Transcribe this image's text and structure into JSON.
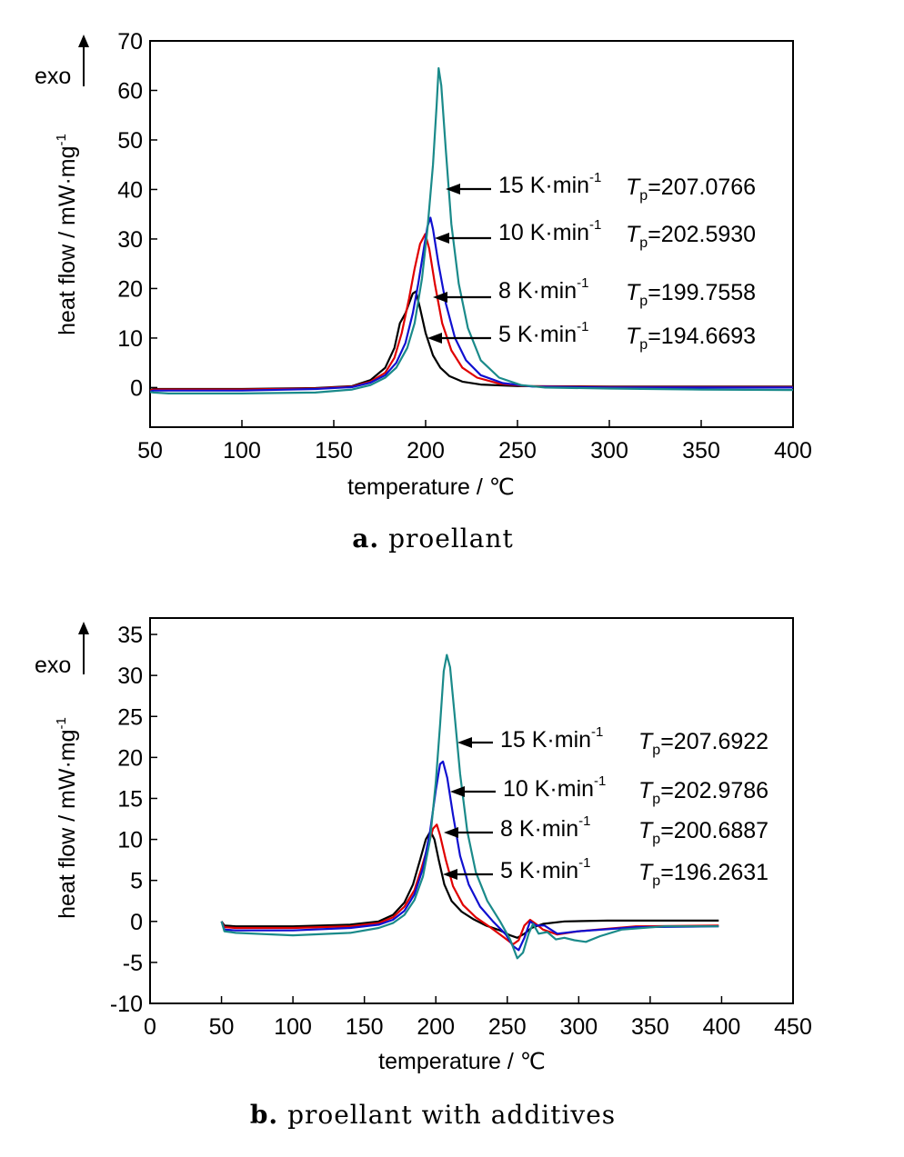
{
  "chart_data": [
    {
      "type": "line",
      "panel_label": "a.",
      "caption": "proellant",
      "xlabel": "temperature / ℃",
      "ylabel": "heat flow / mW·mg",
      "ylabel_sup": "-1",
      "exo_label": "exo",
      "xlim": [
        50,
        400
      ],
      "ylim": [
        -8,
        70
      ],
      "xticks": [
        50,
        100,
        150,
        200,
        250,
        300,
        350,
        400
      ],
      "yticks": [
        0,
        10,
        20,
        30,
        40,
        50,
        60,
        70
      ],
      "legend_placement": "inline arrows pointing to curves",
      "series": [
        {
          "name": "5 K·min",
          "name_sup": "-1",
          "tp_label": "T",
          "tp_sub": "p",
          "tp_value": "=194.6693",
          "color": "#000000",
          "x": [
            50,
            52,
            60,
            100,
            140,
            160,
            170,
            178,
            183,
            186,
            189,
            191,
            193,
            194.7,
            197,
            200,
            204,
            208,
            213,
            220,
            230,
            250,
            300,
            350,
            400
          ],
          "y": [
            -0.5,
            -0.3,
            -0.3,
            -0.3,
            -0.1,
            0.3,
            1.5,
            4,
            8,
            13,
            15,
            17,
            19,
            19.4,
            16,
            11,
            6.5,
            4,
            2.3,
            1.2,
            0.6,
            0.3,
            0.2,
            0.2,
            0.2
          ]
        },
        {
          "name": "8 K·min",
          "name_sup": "-1",
          "tp_label": "T",
          "tp_sub": "p",
          "tp_value": "=199.7558",
          "color": "#e00000",
          "x": [
            50,
            52,
            60,
            100,
            140,
            160,
            170,
            178,
            183,
            187,
            191,
            194,
            197,
            199.8,
            202,
            205,
            209,
            214,
            220,
            228,
            240,
            255,
            300,
            350,
            400
          ],
          "y": [
            -0.6,
            -0.4,
            -0.4,
            -0.4,
            -0.2,
            0.2,
            1.2,
            3,
            6,
            11,
            18,
            24,
            29,
            31,
            28,
            21,
            13,
            7.5,
            4,
            2,
            0.8,
            0.3,
            0.1,
            0.1,
            0.1
          ]
        },
        {
          "name": "10 K·min",
          "name_sup": "-1",
          "tp_label": "T",
          "tp_sub": "p",
          "tp_value": "=202.5930",
          "color": "#1010d0",
          "x": [
            50,
            52,
            60,
            100,
            140,
            160,
            170,
            178,
            184,
            189,
            193,
            196,
            199,
            201,
            202.6,
            204,
            207,
            211,
            216,
            222,
            230,
            242,
            258,
            300,
            350,
            400
          ],
          "y": [
            -0.8,
            -0.6,
            -0.6,
            -0.6,
            -0.3,
            0.1,
            1,
            2.5,
            5,
            9,
            15,
            21,
            28,
            32.5,
            34.3,
            32,
            25,
            17,
            10,
            5.5,
            2.5,
            0.9,
            0.2,
            0,
            0,
            0
          ]
        },
        {
          "name": "15 K·min",
          "name_sup": "-1",
          "tp_label": "T",
          "tp_sub": "p",
          "tp_value": "=207.0766",
          "color": "#1a8a8a",
          "x": [
            50,
            52,
            60,
            100,
            140,
            160,
            170,
            178,
            184,
            190,
            194,
            198,
            201,
            204,
            206,
            207.1,
            208.5,
            211,
            214,
            218,
            223,
            230,
            240,
            252,
            265,
            300,
            350,
            400
          ],
          "y": [
            -0.9,
            -1,
            -1.2,
            -1.2,
            -1,
            -0.4,
            0.5,
            2,
            4,
            8,
            13,
            22,
            32,
            45,
            57,
            64.5,
            61,
            48,
            33,
            21,
            12,
            5.5,
            2,
            0.5,
            0,
            -0.2,
            -0.4,
            -0.5
          ]
        }
      ]
    },
    {
      "type": "line",
      "panel_label": "b.",
      "caption": "proellant with additives",
      "xlabel": "temperature / ℃",
      "ylabel": "heat flow / mW·mg",
      "ylabel_sup": "-1",
      "exo_label": "exo",
      "xlim": [
        0,
        450
      ],
      "ylim": [
        -10,
        37
      ],
      "xticks": [
        0,
        50,
        100,
        150,
        200,
        250,
        300,
        350,
        400,
        450
      ],
      "yticks": [
        -10,
        -5,
        0,
        5,
        10,
        15,
        20,
        25,
        30,
        35
      ],
      "legend_placement": "inline arrows pointing to curves",
      "series": [
        {
          "name": "5 K·min",
          "name_sup": "-1",
          "tp_label": "T",
          "tp_sub": "p",
          "tp_value": "=196.2631",
          "color": "#000000",
          "x": [
            50,
            52,
            60,
            100,
            140,
            160,
            170,
            178,
            184,
            189,
            193,
            196.3,
            199,
            202,
            206,
            211,
            218,
            226,
            235,
            245,
            252,
            257,
            262,
            267,
            275,
            290,
            320,
            360,
            398
          ],
          "y": [
            0,
            -0.5,
            -0.6,
            -0.6,
            -0.4,
            0,
            0.8,
            2.3,
            4.5,
            7.5,
            10,
            11,
            10,
            7.5,
            4.5,
            2.5,
            1.2,
            0.3,
            -0.5,
            -1.1,
            -1.7,
            -2,
            -1.5,
            -0.8,
            -0.3,
            0,
            0.1,
            0.1,
            0.1
          ]
        },
        {
          "name": "8 K·min",
          "name_sup": "-1",
          "tp_label": "T",
          "tp_sub": "p",
          "tp_value": "=200.6887",
          "color": "#e00000",
          "x": [
            50,
            52,
            60,
            100,
            140,
            160,
            170,
            178,
            185,
            190,
            195,
            198,
            200.7,
            203,
            207,
            212,
            219,
            228,
            238,
            248,
            254,
            258,
            262,
            266,
            270,
            275,
            285,
            300,
            340,
            398
          ],
          "y": [
            0,
            -0.7,
            -0.8,
            -0.8,
            -0.6,
            -0.2,
            0.5,
            1.8,
            3.8,
            6.5,
            9.5,
            11.3,
            11.8,
            10.5,
            7.5,
            4.3,
            2,
            0.5,
            -0.7,
            -2,
            -2.8,
            -2.3,
            -0.5,
            0.2,
            -0.3,
            -1,
            -1.6,
            -1.2,
            -0.6,
            -0.5
          ]
        },
        {
          "name": "10 K·min",
          "name_sup": "-1",
          "tp_label": "T",
          "tp_sub": "p",
          "tp_value": "=202.9786",
          "color": "#1010d0",
          "x": [
            50,
            52,
            60,
            100,
            140,
            160,
            170,
            178,
            185,
            191,
            196,
            200,
            203,
            205,
            208,
            212,
            217,
            223,
            231,
            240,
            249,
            254,
            258,
            262,
            266,
            270,
            276,
            285,
            300,
            340,
            398
          ],
          "y": [
            0,
            -1,
            -1.1,
            -1.1,
            -0.8,
            -0.4,
            0.2,
            1.3,
            3.3,
            6.5,
            11,
            16,
            19.2,
            19.5,
            17.5,
            13,
            8,
            4.5,
            1.8,
            0,
            -1.6,
            -3,
            -3.5,
            -2,
            0,
            -0.5,
            -0.5,
            -1.5,
            -1.2,
            -0.7,
            -0.6
          ]
        },
        {
          "name": "15 K·min",
          "name_sup": "-1",
          "tp_label": "T",
          "tp_sub": "p",
          "tp_value": "=207.6922",
          "color": "#1a8a8a",
          "x": [
            50,
            52,
            60,
            100,
            140,
            160,
            170,
            178,
            185,
            191,
            196,
            200,
            203,
            205.5,
            207.7,
            210,
            213,
            217,
            222,
            228,
            236,
            245,
            252,
            257,
            261,
            265,
            268,
            272,
            278,
            284,
            290,
            297,
            305,
            315,
            330,
            360,
            398
          ],
          "y": [
            0,
            -1.2,
            -1.4,
            -1.7,
            -1.4,
            -0.8,
            -0.2,
            0.8,
            2.6,
            5.5,
            10,
            17,
            24,
            30.5,
            32.5,
            31,
            25.5,
            18,
            11,
            6,
            2.5,
            0,
            -2.2,
            -4.5,
            -3.8,
            -1.5,
            -0.3,
            -1.5,
            -1.3,
            -2.2,
            -2,
            -2.3,
            -2.5,
            -1.8,
            -1,
            -0.6,
            -0.6
          ]
        }
      ]
    }
  ]
}
